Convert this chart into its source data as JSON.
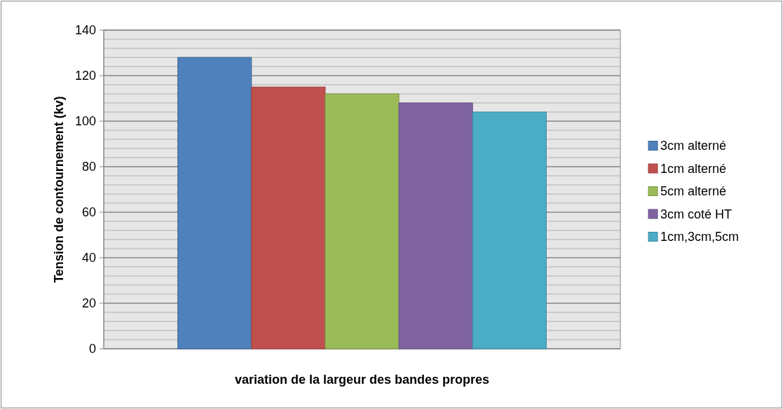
{
  "chart_data": {
    "type": "bar",
    "xlabel": "variation de la largeur des bandes propres",
    "ylabel": "Tension de contournement (kv)",
    "categories": [
      null
    ],
    "series": [
      {
        "name": "3cm alterné",
        "color": "#4f81bd",
        "values": [
          128
        ]
      },
      {
        "name": "1cm alterné",
        "color": "#c0504d",
        "values": [
          115
        ]
      },
      {
        "name": "5cm alterné",
        "color": "#9bbb59",
        "values": [
          112
        ]
      },
      {
        "name": "3cm coté HT",
        "color": "#8064a2",
        "values": [
          108
        ]
      },
      {
        "name": "1cm,3cm,5cm",
        "color": "#4bacc6",
        "values": [
          104
        ]
      }
    ],
    "ylim": [
      0,
      140
    ],
    "yticks": [
      0,
      20,
      40,
      60,
      80,
      100,
      120,
      140
    ],
    "grid": "y",
    "legend": "right"
  }
}
